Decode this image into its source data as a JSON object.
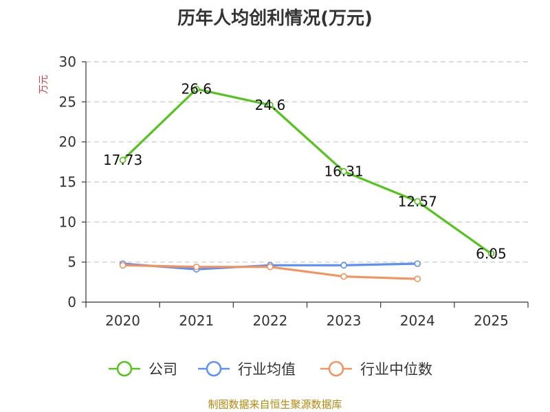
{
  "chart_data": {
    "type": "line",
    "title": "历年人均创利情况(万元)",
    "ylabel": "万元",
    "xlabel": "",
    "categories": [
      "2020",
      "2021",
      "2022",
      "2023",
      "2024",
      "2025"
    ],
    "ylim": [
      0,
      30
    ],
    "yticks": [
      0,
      5,
      10,
      15,
      20,
      25,
      30
    ],
    "grid": true,
    "legend_position": "bottom",
    "series": [
      {
        "name": "公司",
        "color": "#52c41a",
        "values": [
          17.73,
          26.6,
          24.6,
          16.31,
          12.57,
          6.05
        ],
        "labels": [
          "17.73",
          "26.6",
          "24.6",
          "16.31",
          "12.57",
          "6.05"
        ]
      },
      {
        "name": "行业均值",
        "color": "#5b8ff9",
        "values": [
          4.8,
          4.1,
          4.6,
          4.6,
          4.8,
          null
        ]
      },
      {
        "name": "行业中位数",
        "color": "#f6925e",
        "values": [
          4.6,
          4.4,
          4.4,
          3.2,
          2.9,
          null
        ]
      }
    ]
  },
  "ylabel_color": "#e03c3c",
  "source": {
    "text": "制图数据来自恒生聚源数据库",
    "color": "#b8860b"
  }
}
